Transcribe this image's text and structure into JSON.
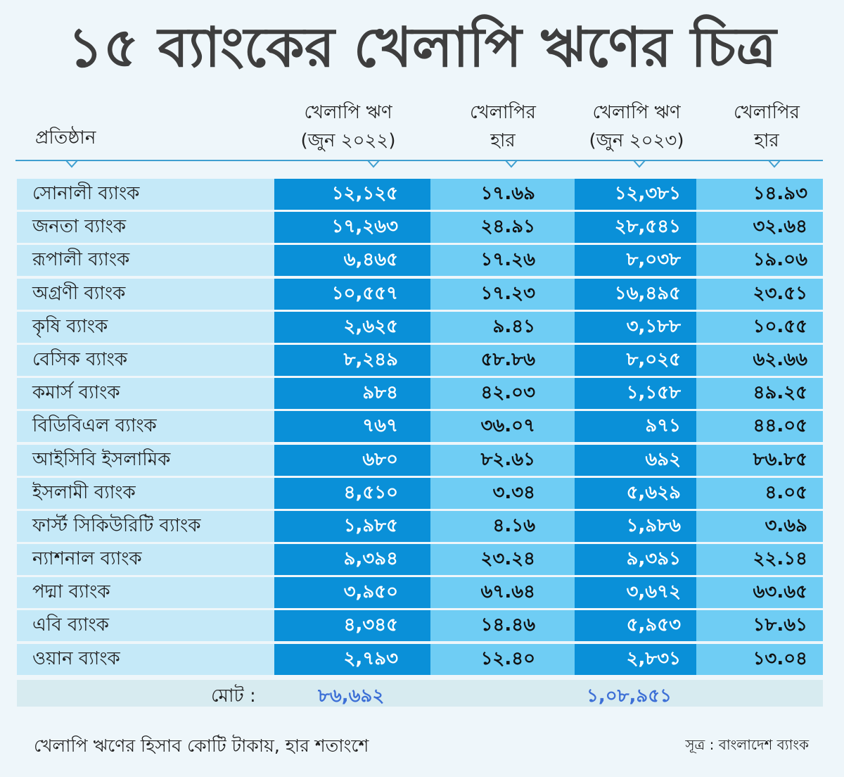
{
  "title": "১৫ ব্যাংকের খেলাপি ঋণের চিত্র",
  "headers": {
    "institution": "প্রতিষ্ঠান",
    "loan2022_l1": "খেলাপি ঋণ",
    "loan2022_l2": "(জুন ২০২২)",
    "rate_l1": "খেলাপির",
    "rate_l2": "হার",
    "loan2023_l1": "খেলাপি ঋণ",
    "loan2023_l2": "(জুন ২০২৩)",
    "rate2_l1": "খেলাপির",
    "rate2_l2": "হার"
  },
  "colors": {
    "dark_cell": "#0a90d8",
    "light_cell": "#6fcdf4",
    "name_cell": "#c5e9f8",
    "total_text": "#3c6fd6"
  },
  "chart_data": {
    "type": "table",
    "title": "১৫ ব্যাংকের খেলাপি ঋণের চিত্র",
    "columns": [
      "প্রতিষ্ঠান",
      "খেলাপি ঋণ (জুন ২০২২)",
      "খেলাপির হার",
      "খেলাপি ঋণ (জুন ২০২৩)",
      "খেলাপির হার"
    ],
    "rows": [
      [
        "সোনালী ব্যাংক",
        "১২,১২৫",
        "১৭.৬৯",
        "১২,৩৮১",
        "১৪.৯৩"
      ],
      [
        "জনতা ব্যাংক",
        "১৭,২৬৩",
        "২৪.৯১",
        "২৮,৫৪১",
        "৩২.৬৪"
      ],
      [
        "রূপালী ব্যাংক",
        "৬,৪৬৫",
        "১৭.২৬",
        "৮,০৩৮",
        "১৯.০৬"
      ],
      [
        "অগ্রণী ব্যাংক",
        "১০,৫৫৭",
        "১৭.২৩",
        "১৬,৪৯৫",
        "২৩.৫১"
      ],
      [
        "কৃষি ব্যাংক",
        "২,৬২৫",
        "৯.৪১",
        "৩,১৮৮",
        "১০.৫৫"
      ],
      [
        "বেসিক ব্যাংক",
        "৮,২৪৯",
        "৫৮.৮৬",
        "৮,০২৫",
        "৬২.৬৬"
      ],
      [
        "কমার্স ব্যাংক",
        "৯৮৪",
        "৪২.০৩",
        "১,১৫৮",
        "৪৯.২৫"
      ],
      [
        "বিডিবিএল ব্যাংক",
        "৭৬৭",
        "৩৬.০৭",
        "৯৭১",
        "৪৪.০৫"
      ],
      [
        "আইসিবি ইসলামিক",
        "৬৮০",
        "৮২.৬১",
        "৬৯২",
        "৮৬.৮৫"
      ],
      [
        "ইসলামী ব্যাংক",
        "৪,৫১০",
        "৩.৩৪",
        "৫,৬২৯",
        "৪.০৫"
      ],
      [
        "ফার্স্ট সিকিউরিটি ব্যাংক",
        "১,৯৮৫",
        "৪.১৬",
        "১,৯৮৬",
        "৩.৬৯"
      ],
      [
        "ন্যাশনাল ব্যাংক",
        "৯,৩৯৪",
        "২৩.২৪",
        "৯,৩৯১",
        "২২.১৪"
      ],
      [
        "পদ্মা ব্যাংক",
        "৩,৯৫০",
        "৬৭.৬৪",
        "৩,৬৭২",
        "৬৩.৬৫"
      ],
      [
        "এবি ব্যাংক",
        "৪,৩৪৫",
        "১৪.৪৬",
        "৫,৯৫৩",
        "১৮.৬১"
      ],
      [
        "ওয়ান ব্যাংক",
        "২,৭৯৩",
        "১২.৪০",
        "২,৮৩১",
        "১৩.০৪"
      ]
    ],
    "total": {
      "label": "মোট :",
      "loan2022": "৮৬,৬৯২",
      "loan2023": "১,০৮,৯৫১"
    }
  },
  "footnote": "খেলাপি ঋণের হিসাব কোটি টাকায়, হার শতাংশে",
  "source": "সূত্র : বাংলাদেশ ব্যাংক"
}
